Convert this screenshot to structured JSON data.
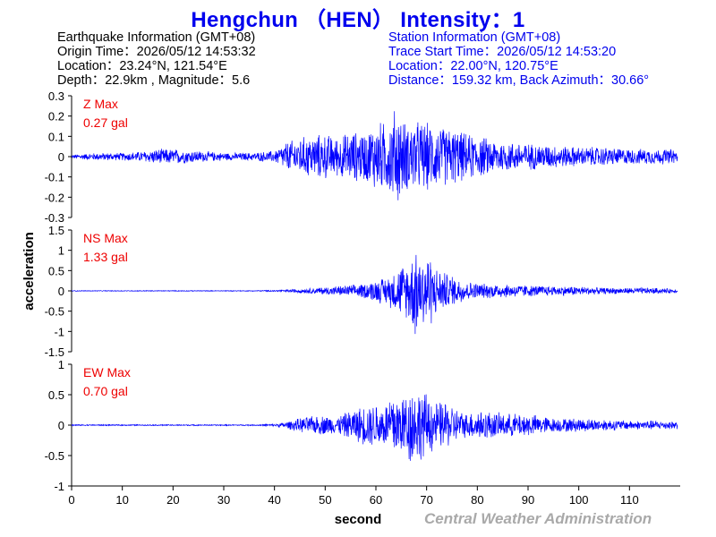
{
  "title": "Hengchun （HEN） Intensity：1",
  "earthquake_info": {
    "header": "Earthquake Information  (GMT+08)",
    "origin_time": "Origin Time：2026/05/12 14:53:32",
    "location": "Location：23.24°N, 121.54°E",
    "depth_magnitude": "Depth：22.9km , Magnitude：5.6"
  },
  "station_info": {
    "header": "Station Information  (GMT+08)",
    "trace_start": "Trace Start Time：2026/05/12 14:53:20",
    "location": "Location：22.00°N, 120.75°E",
    "distance_azimuth": "Distance：159.32 km, Back Azimuth：30.66°"
  },
  "colors": {
    "title": "#0000ee",
    "trace": "#0000ff",
    "max_label": "#ee0000",
    "agency": "#a9a9a9",
    "axis": "#000000"
  },
  "agency": "Central Weather Administration",
  "chart_data": {
    "type": "line",
    "xlabel": "second",
    "ylabel": "acceleration",
    "xlim": [
      0,
      120
    ],
    "x_ticks": [
      0,
      10,
      20,
      30,
      40,
      50,
      60,
      70,
      80,
      90,
      100,
      110
    ],
    "grid": false,
    "x": [
      0,
      5,
      10,
      15,
      17,
      20,
      25,
      30,
      35,
      40,
      42,
      45,
      47,
      50,
      52,
      55,
      58,
      60,
      62,
      63,
      64,
      65,
      66,
      67,
      68,
      69,
      70,
      72,
      74,
      75,
      78,
      80,
      85,
      90,
      95,
      100,
      105,
      110,
      115,
      119
    ],
    "series": [
      {
        "name": "Z",
        "max_label": "Z Max",
        "max_value": "0.27 gal",
        "ylim": [
          -0.3,
          0.3
        ],
        "y_ticks": [
          -0.3,
          -0.2,
          -0.1,
          0,
          0.1,
          0.2,
          0.3
        ],
        "y_tick_labels": [
          "-0.3",
          "-0.2",
          "-0.1",
          "0",
          "0.1",
          "0.2",
          "0.3"
        ],
        "envelope": [
          0.01,
          0.02,
          0.02,
          0.03,
          0.04,
          0.04,
          0.03,
          0.02,
          0.02,
          0.03,
          0.07,
          0.1,
          0.11,
          0.12,
          0.1,
          0.13,
          0.13,
          0.18,
          0.18,
          0.2,
          0.27,
          0.22,
          0.17,
          0.19,
          0.19,
          0.18,
          0.18,
          0.16,
          0.15,
          0.15,
          0.12,
          0.11,
          0.08,
          0.07,
          0.06,
          0.05,
          0.05,
          0.04,
          0.04,
          0.04
        ]
      },
      {
        "name": "NS",
        "max_label": "NS Max",
        "max_value": "1.33 gal",
        "ylim": [
          -1.5,
          1.5
        ],
        "y_ticks": [
          -1.5,
          -1,
          -0.5,
          0,
          0.5,
          1,
          1.5
        ],
        "y_tick_labels": [
          "-1.5",
          "-1",
          "-0.5",
          "0",
          "0.5",
          "1",
          "1.5"
        ],
        "envelope": [
          0.01,
          0.01,
          0.01,
          0.01,
          0.01,
          0.01,
          0.01,
          0.01,
          0.01,
          0.02,
          0.03,
          0.06,
          0.07,
          0.1,
          0.12,
          0.15,
          0.2,
          0.3,
          0.35,
          0.45,
          0.55,
          0.7,
          0.7,
          0.9,
          1.33,
          0.8,
          1.1,
          0.6,
          0.45,
          0.4,
          0.25,
          0.2,
          0.18,
          0.15,
          0.12,
          0.12,
          0.08,
          0.08,
          0.08,
          0.05
        ]
      },
      {
        "name": "EW",
        "max_label": "EW Max",
        "max_value": "0.70 gal",
        "ylim": [
          -1,
          1
        ],
        "y_ticks": [
          -1,
          -0.5,
          0,
          0.5,
          1
        ],
        "y_tick_labels": [
          "-1",
          "-0.5",
          "0",
          "0.5",
          "1"
        ],
        "envelope": [
          0.01,
          0.01,
          0.01,
          0.01,
          0.01,
          0.01,
          0.01,
          0.01,
          0.01,
          0.02,
          0.05,
          0.12,
          0.15,
          0.17,
          0.14,
          0.25,
          0.35,
          0.38,
          0.4,
          0.55,
          0.6,
          0.5,
          0.62,
          0.7,
          0.65,
          0.6,
          0.55,
          0.4,
          0.4,
          0.33,
          0.2,
          0.28,
          0.2,
          0.2,
          0.12,
          0.12,
          0.1,
          0.08,
          0.08,
          0.07
        ]
      }
    ]
  }
}
